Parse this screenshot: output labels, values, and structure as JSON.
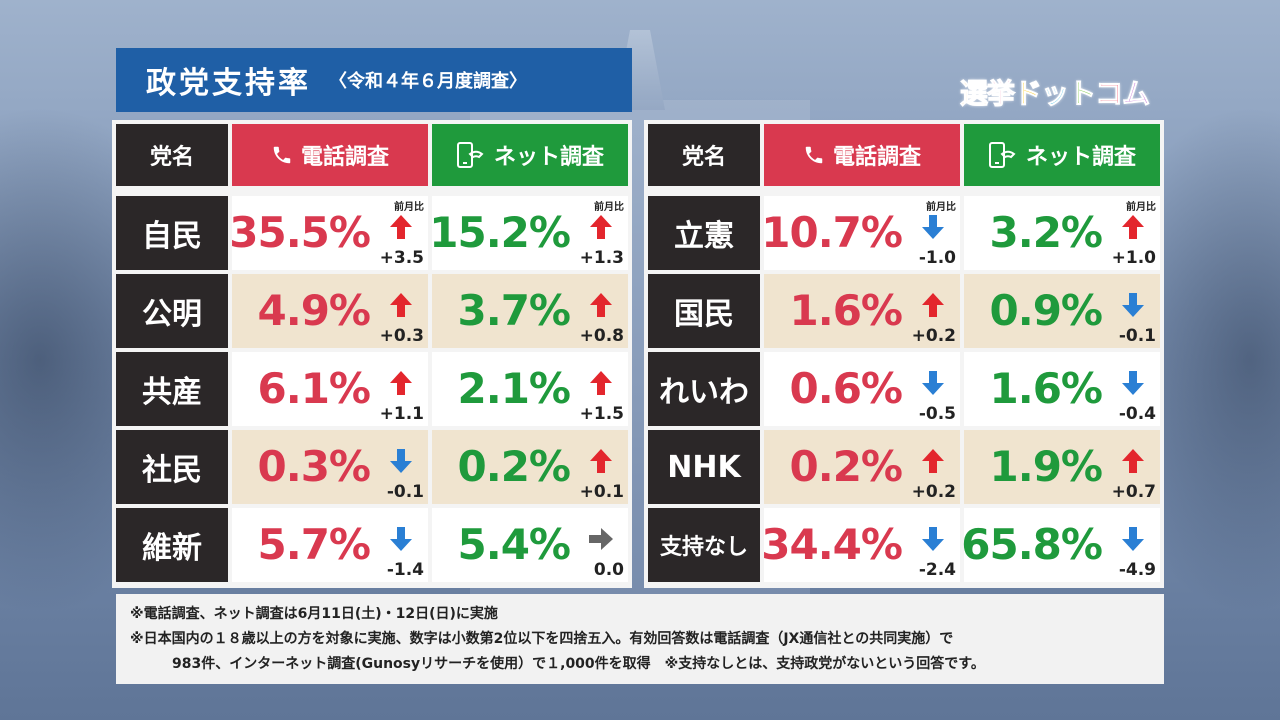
{
  "title": "政党支持率",
  "subtitle": "〈令和４年６月度調査〉",
  "logo_text": [
    "選",
    "挙",
    "ド",
    "ッ",
    "ト",
    "コ",
    "ム"
  ],
  "colors": {
    "phone": "#d9394f",
    "net": "#1f9a3c",
    "up_arrow": "#e3262d",
    "down_arrow": "#2a7fd4",
    "flat_arrow": "#666666"
  },
  "headers": {
    "name": "党名",
    "phone": "電話調査",
    "net": "ネット調査",
    "phone_icon": "phone-icon",
    "net_icon": "smartphone-icon"
  },
  "prev_label": "前月比",
  "left_rows": [
    {
      "party": "自民",
      "phone": "35.5%",
      "phone_dir": "up",
      "phone_delta": "+3.5",
      "net": "15.2%",
      "net_dir": "up",
      "net_delta": "+1.3"
    },
    {
      "party": "公明",
      "phone": "4.9%",
      "phone_dir": "up",
      "phone_delta": "+0.3",
      "net": "3.7%",
      "net_dir": "up",
      "net_delta": "+0.8"
    },
    {
      "party": "共産",
      "phone": "6.1%",
      "phone_dir": "up",
      "phone_delta": "+1.1",
      "net": "2.1%",
      "net_dir": "up",
      "net_delta": "+1.5"
    },
    {
      "party": "社民",
      "phone": "0.3%",
      "phone_dir": "down",
      "phone_delta": "-0.1",
      "net": "0.2%",
      "net_dir": "up",
      "net_delta": "+0.1"
    },
    {
      "party": "維新",
      "phone": "5.7%",
      "phone_dir": "down",
      "phone_delta": "-1.4",
      "net": "5.4%",
      "net_dir": "flat",
      "net_delta": "0.0"
    }
  ],
  "right_rows": [
    {
      "party": "立憲",
      "phone": "10.7%",
      "phone_dir": "down",
      "phone_delta": "-1.0",
      "net": "3.2%",
      "net_dir": "up",
      "net_delta": "+1.0"
    },
    {
      "party": "国民",
      "phone": "1.6%",
      "phone_dir": "up",
      "phone_delta": "+0.2",
      "net": "0.9%",
      "net_dir": "down",
      "net_delta": "-0.1"
    },
    {
      "party": "れいわ",
      "phone": "0.6%",
      "phone_dir": "down",
      "phone_delta": "-0.5",
      "net": "1.6%",
      "net_dir": "down",
      "net_delta": "-0.4"
    },
    {
      "party": "NHK",
      "phone": "0.2%",
      "phone_dir": "up",
      "phone_delta": "+0.2",
      "net": "1.9%",
      "net_dir": "up",
      "net_delta": "+0.7"
    },
    {
      "party": "支持なし",
      "phone": "34.4%",
      "phone_dir": "down",
      "phone_delta": "-2.4",
      "net": "65.8%",
      "net_dir": "down",
      "net_delta": "-4.9"
    }
  ],
  "notes": [
    "※電話調査、ネット調査は6月11日(土)・12日(日)に実施",
    "※日本国内の１８歳以上の方を対象に実施、数字は小数第2位以下を四捨五入。有効回答数は電話調査（JX通信社との共同実施）で",
    "983件、インターネット調査(Gunosyリサーチを使用）で１,000件を取得　※支持なしとは、支持政党がないという回答です。"
  ]
}
